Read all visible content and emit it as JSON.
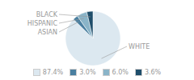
{
  "chart_data": {
    "type": "pie",
    "categories": [
      "WHITE",
      "ASIAN",
      "HISPANIC",
      "BLACK"
    ],
    "values": [
      87.4,
      3.0,
      6.0,
      3.6
    ],
    "value_labels": [
      "87.4%",
      "3.0%",
      "6.0%",
      "3.6%"
    ],
    "colors": [
      "#dce8f0",
      "#4a7fa0",
      "#8ab4c8",
      "#1f4e6b"
    ],
    "legend": "bottom"
  }
}
